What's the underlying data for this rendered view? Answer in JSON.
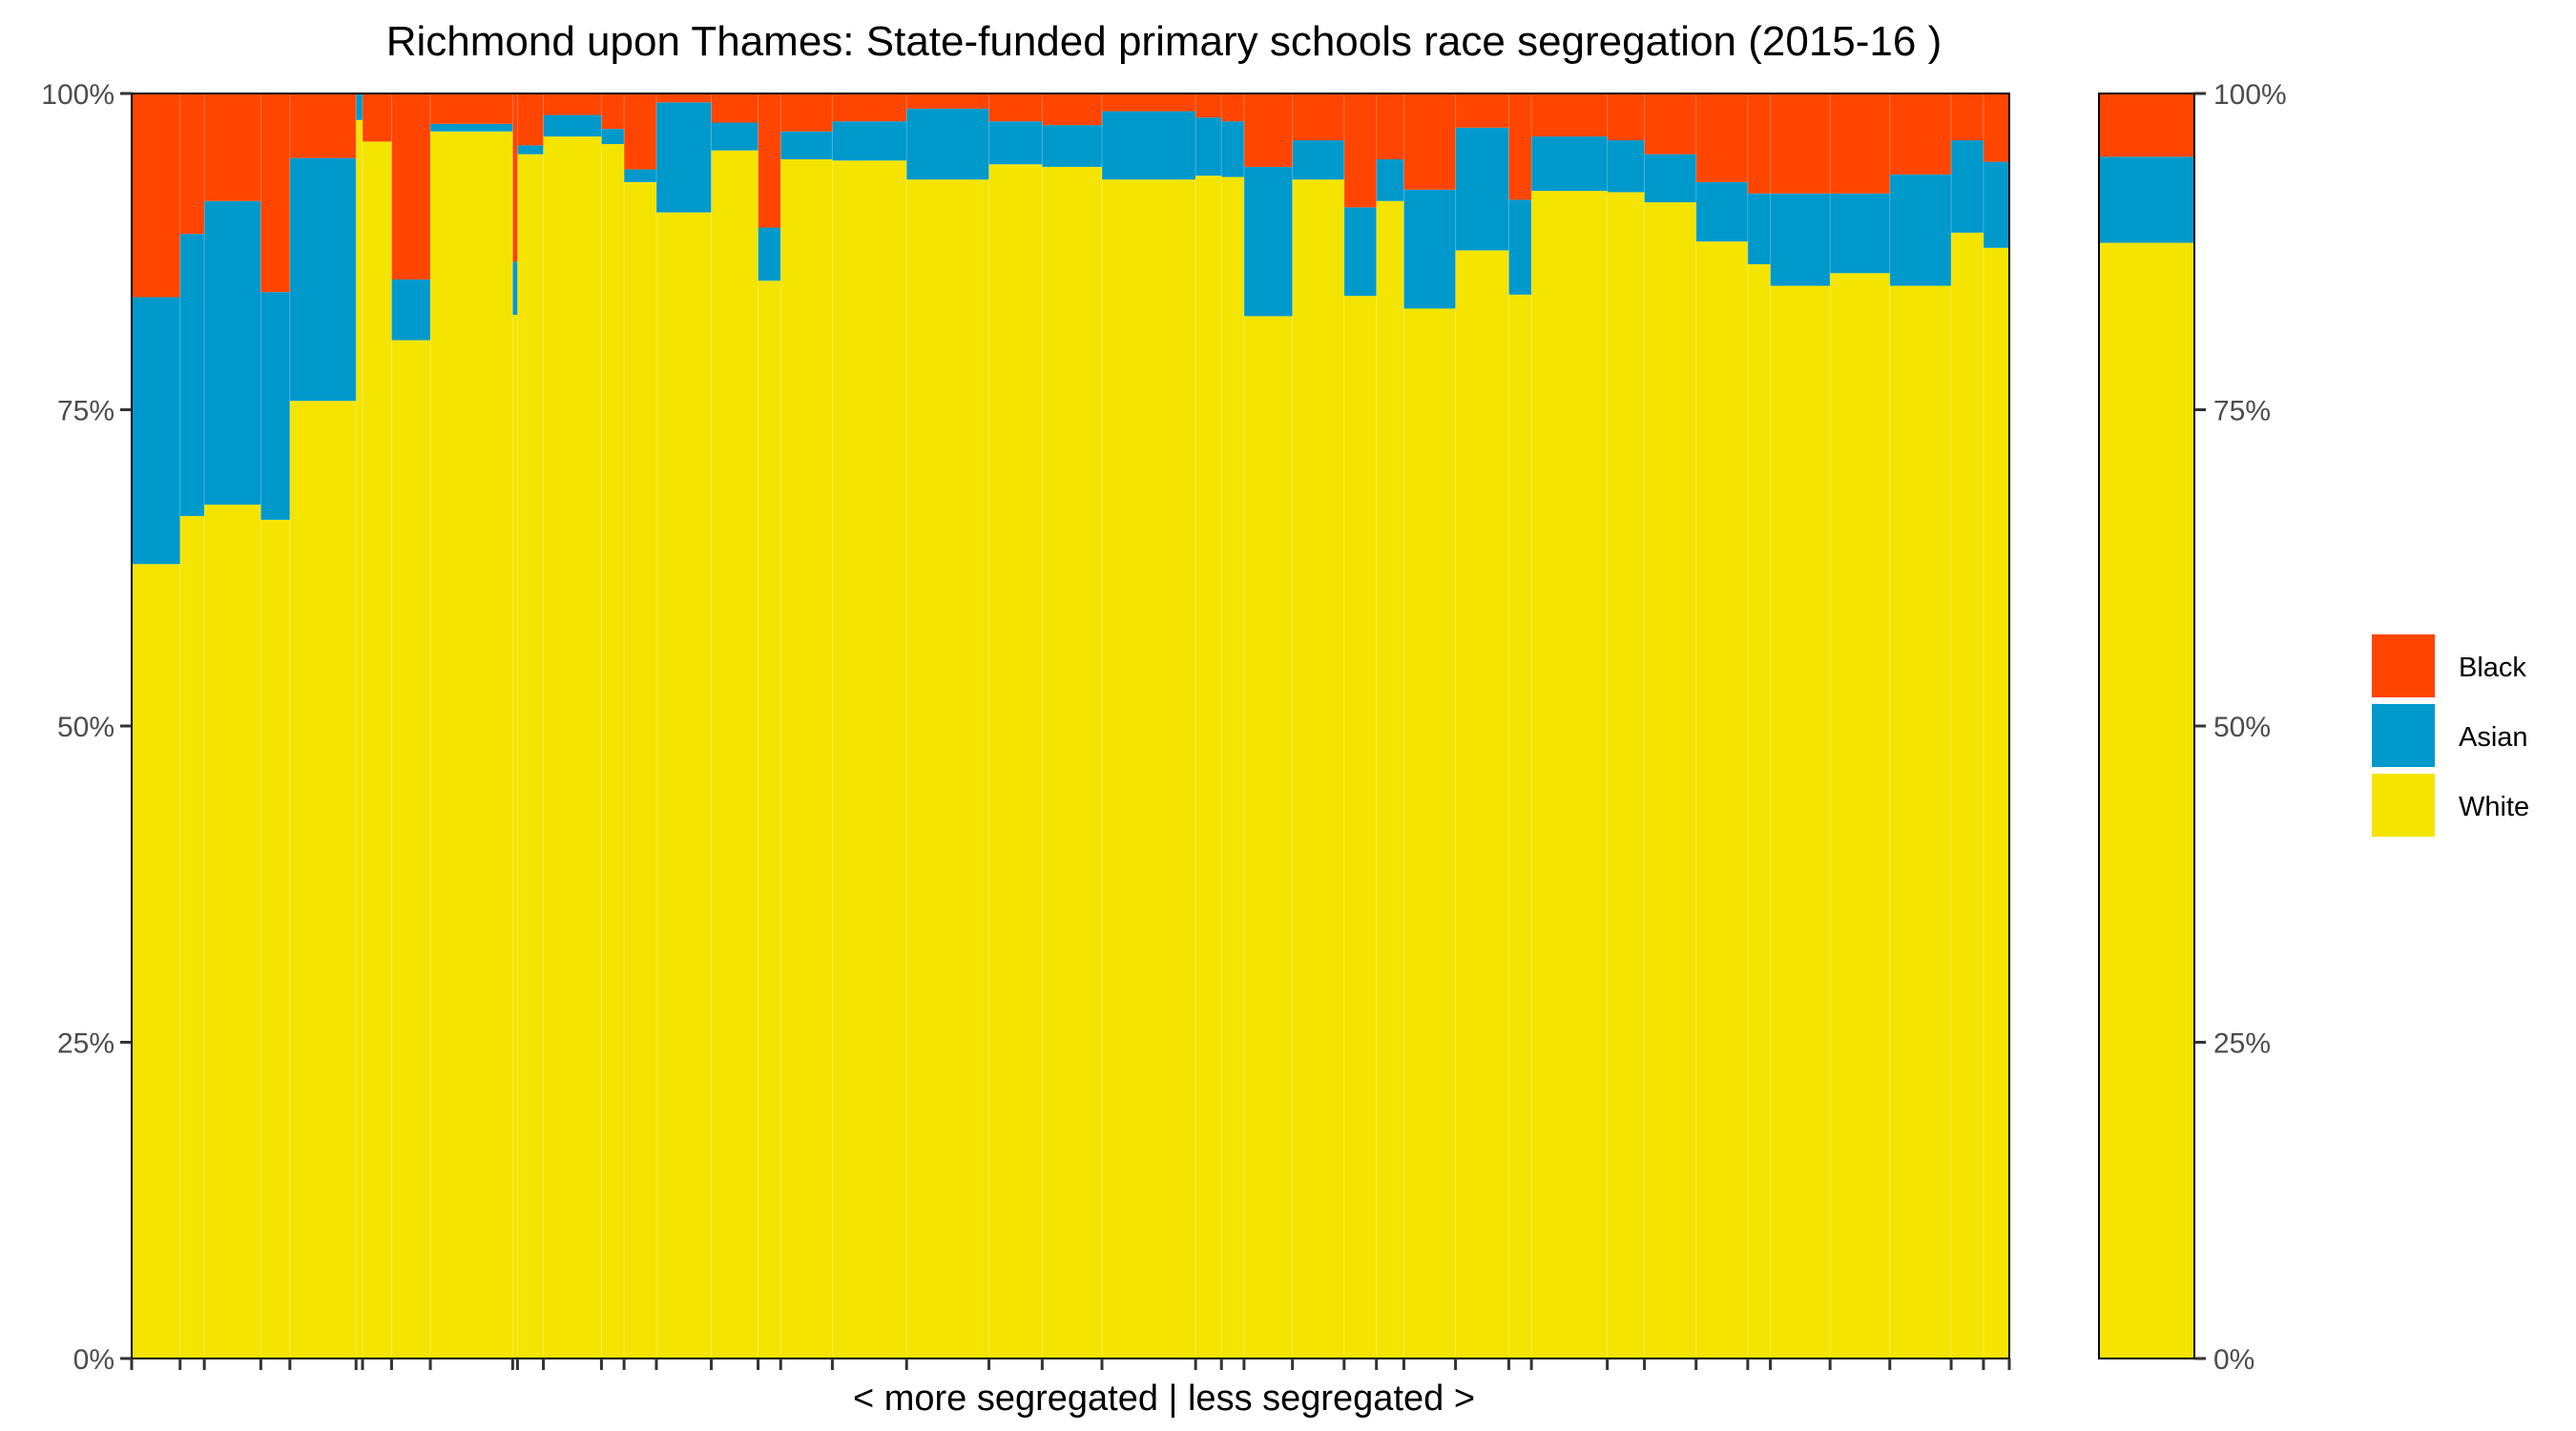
{
  "chart_data": {
    "type": "bar",
    "stacked": true,
    "variable_width": true,
    "title": "Richmond upon Thames: State-funded primary schools race segregation (2015-16 )",
    "xlabel": "< more segregated | less segregated >",
    "ylabel": "",
    "ylim": [
      0,
      1
    ],
    "yticks": [
      "0%",
      "25%",
      "50%",
      "75%",
      "100%"
    ],
    "grid": false,
    "legend_position": "right",
    "series": [
      {
        "name": "Black",
        "color": "#FF4500"
      },
      {
        "name": "Asian",
        "color": "#0099CC"
      },
      {
        "name": "White",
        "color": "#F5E400"
      }
    ],
    "schools": [
      {
        "width": 30,
        "white": 0.628,
        "asian": 0.211,
        "black": 0.161
      },
      {
        "width": 15,
        "white": 0.666,
        "asian": 0.223,
        "black": 0.111
      },
      {
        "width": 35,
        "white": 0.675,
        "asian": 0.24,
        "black": 0.085
      },
      {
        "width": 18,
        "white": 0.663,
        "asian": 0.18,
        "black": 0.157
      },
      {
        "width": 41,
        "white": 0.757,
        "asian": 0.192,
        "black": 0.051
      },
      {
        "width": 4,
        "white": 0.979,
        "asian": 0.021,
        "black": 0.0
      },
      {
        "width": 18,
        "white": 0.962,
        "asian": 0.0,
        "black": 0.038
      },
      {
        "width": 24,
        "white": 0.805,
        "asian": 0.048,
        "black": 0.147
      },
      {
        "width": 51,
        "white": 0.97,
        "asian": 0.006,
        "black": 0.024
      },
      {
        "width": 3,
        "white": 0.825,
        "asian": 0.042,
        "black": 0.133
      },
      {
        "width": 16,
        "white": 0.952,
        "asian": 0.007,
        "black": 0.041
      },
      {
        "width": 36,
        "white": 0.966,
        "asian": 0.017,
        "black": 0.017
      },
      {
        "width": 14,
        "white": 0.96,
        "asian": 0.012,
        "black": 0.028
      },
      {
        "width": 20,
        "white": 0.93,
        "asian": 0.01,
        "black": 0.06
      },
      {
        "width": 34,
        "white": 0.906,
        "asian": 0.087,
        "black": 0.007
      },
      {
        "width": 29,
        "white": 0.955,
        "asian": 0.022,
        "black": 0.023
      },
      {
        "width": 14,
        "white": 0.852,
        "asian": 0.042,
        "black": 0.106
      },
      {
        "width": 32,
        "white": 0.948,
        "asian": 0.022,
        "black": 0.03
      },
      {
        "width": 46,
        "white": 0.947,
        "asian": 0.031,
        "black": 0.022
      },
      {
        "width": 51,
        "white": 0.932,
        "asian": 0.056,
        "black": 0.012
      },
      {
        "width": 33,
        "white": 0.944,
        "asian": 0.034,
        "black": 0.022
      },
      {
        "width": 37,
        "white": 0.942,
        "asian": 0.033,
        "black": 0.025
      },
      {
        "width": 58,
        "white": 0.932,
        "asian": 0.054,
        "black": 0.014
      },
      {
        "width": 16,
        "white": 0.935,
        "asian": 0.046,
        "black": 0.019
      },
      {
        "width": 14,
        "white": 0.934,
        "asian": 0.044,
        "black": 0.022
      },
      {
        "width": 30,
        "white": 0.824,
        "asian": 0.118,
        "black": 0.058
      },
      {
        "width": 32,
        "white": 0.932,
        "asian": 0.031,
        "black": 0.037
      },
      {
        "width": 20,
        "white": 0.84,
        "asian": 0.07,
        "black": 0.09
      },
      {
        "width": 17,
        "white": 0.915,
        "asian": 0.033,
        "black": 0.052
      },
      {
        "width": 32,
        "white": 0.83,
        "asian": 0.094,
        "black": 0.076
      },
      {
        "width": 33,
        "white": 0.876,
        "asian": 0.097,
        "black": 0.027
      },
      {
        "width": 14,
        "white": 0.841,
        "asian": 0.075,
        "black": 0.084
      },
      {
        "width": 47,
        "white": 0.923,
        "asian": 0.043,
        "black": 0.034
      },
      {
        "width": 23,
        "white": 0.922,
        "asian": 0.041,
        "black": 0.037
      },
      {
        "width": 32,
        "white": 0.914,
        "asian": 0.038,
        "black": 0.048
      },
      {
        "width": 32,
        "white": 0.883,
        "asian": 0.047,
        "black": 0.07
      },
      {
        "width": 14,
        "white": 0.865,
        "asian": 0.056,
        "black": 0.079
      },
      {
        "width": 37,
        "white": 0.848,
        "asian": 0.073,
        "black": 0.079
      },
      {
        "width": 37,
        "white": 0.858,
        "asian": 0.063,
        "black": 0.079
      },
      {
        "width": 38,
        "white": 0.848,
        "asian": 0.088,
        "black": 0.064
      },
      {
        "width": 20,
        "white": 0.89,
        "asian": 0.073,
        "black": 0.037
      },
      {
        "width": 16,
        "white": 0.878,
        "asian": 0.068,
        "black": 0.054
      }
    ],
    "overall": {
      "white": 0.882,
      "asian": 0.068,
      "black": 0.05
    }
  }
}
